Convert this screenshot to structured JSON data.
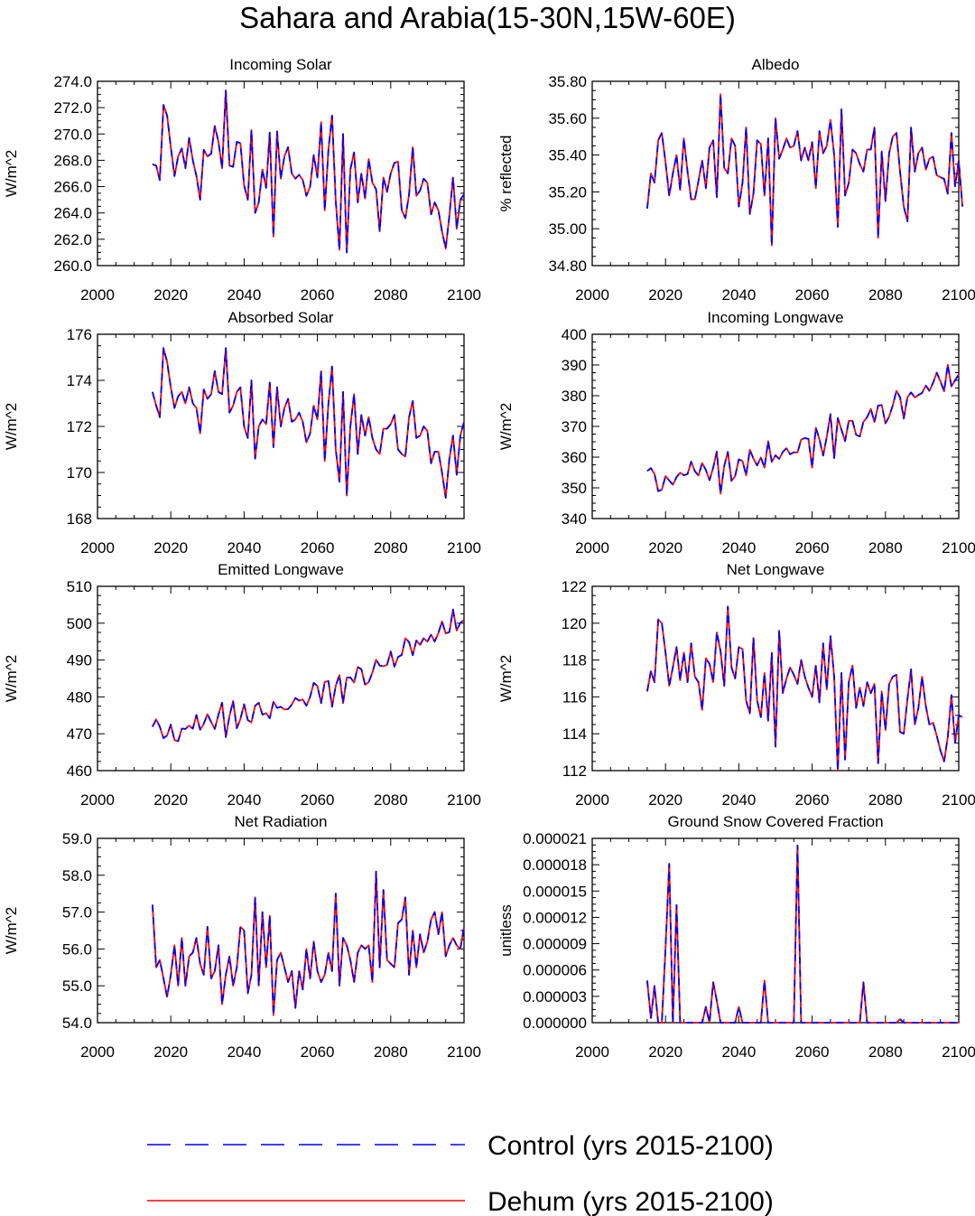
{
  "page_title": "Sahara and Arabia(15-30N,15W-60E)",
  "legend": {
    "items": [
      {
        "label": "Control (yrs 2015-2100)",
        "color": "#0000ff",
        "style": "dashed"
      },
      {
        "label": "Dehum (yrs 2015-2100)",
        "color": "#ff0000",
        "style": "solid"
      }
    ]
  },
  "chart_data": [
    {
      "type": "line",
      "title": "Incoming Solar",
      "ylabel": "W/m^2",
      "xlim": [
        2000,
        2100
      ],
      "ylim": [
        260,
        274
      ],
      "xticks": [
        2000,
        2020,
        2040,
        2060,
        2080,
        2100
      ],
      "yticks": [
        "260.0",
        "262.0",
        "264.0",
        "266.0",
        "268.0",
        "270.0",
        "272.0",
        "274.0"
      ],
      "x_start": 2015,
      "values": [
        267.7,
        267.6,
        266.5,
        272.2,
        271.4,
        269.0,
        266.8,
        268.3,
        268.9,
        267.4,
        269.7,
        268.0,
        266.8,
        265.0,
        268.8,
        268.3,
        268.5,
        270.6,
        269.4,
        267.4,
        273.3,
        267.6,
        267.5,
        269.4,
        269.3,
        266.1,
        265.0,
        270.3,
        264.0,
        264.8,
        267.3,
        265.9,
        270.1,
        262.2,
        270.2,
        266.6,
        268.3,
        269.0,
        267.0,
        266.6,
        266.9,
        266.5,
        265.3,
        266.0,
        268.4,
        266.7,
        270.9,
        264.2,
        268.8,
        271.4,
        264.9,
        261.2,
        270.0,
        261.0,
        267.3,
        268.6,
        264.8,
        267.0,
        265.1,
        268.1,
        266.3,
        265.8,
        262.6,
        266.7,
        265.6,
        267.0,
        267.8,
        267.9,
        264.2,
        263.6,
        265.4,
        269.0,
        265.3,
        265.7,
        266.6,
        266.3,
        263.9,
        264.8,
        264.2,
        262.6,
        261.3,
        263.8,
        266.7,
        262.8,
        265.0,
        265.4
      ]
    },
    {
      "type": "line",
      "title": "Albedo",
      "ylabel": "% reflected",
      "xlim": [
        2000,
        2100
      ],
      "ylim": [
        34.8,
        35.8
      ],
      "xticks": [
        2000,
        2020,
        2040,
        2060,
        2080,
        2100
      ],
      "yticks": [
        "34.80",
        "35.00",
        "35.20",
        "35.40",
        "35.60",
        "35.80"
      ],
      "x_start": 2015,
      "values": [
        35.11,
        35.3,
        35.25,
        35.48,
        35.52,
        35.36,
        35.18,
        35.3,
        35.4,
        35.21,
        35.49,
        35.31,
        35.16,
        35.16,
        35.26,
        35.37,
        35.22,
        35.44,
        35.48,
        35.17,
        35.73,
        35.33,
        35.3,
        35.49,
        35.45,
        35.12,
        35.25,
        35.55,
        35.08,
        35.19,
        35.48,
        35.46,
        35.18,
        35.49,
        34.91,
        35.6,
        35.38,
        35.43,
        35.49,
        35.44,
        35.45,
        35.53,
        35.37,
        35.44,
        35.37,
        35.47,
        35.22,
        35.53,
        35.41,
        35.45,
        35.59,
        35.4,
        35.01,
        35.65,
        35.18,
        35.25,
        35.43,
        35.41,
        35.35,
        35.31,
        35.43,
        35.43,
        35.55,
        34.95,
        35.42,
        35.15,
        35.41,
        35.5,
        35.52,
        35.31,
        35.12,
        35.04,
        35.55,
        35.31,
        35.41,
        35.44,
        35.32,
        35.38,
        35.39,
        35.29,
        35.28,
        35.27,
        35.19,
        35.52,
        35.23,
        35.37,
        35.12
      ]
    },
    {
      "type": "line",
      "title": "Absorbed Solar",
      "ylabel": "W/m^2",
      "xlim": [
        2000,
        2100
      ],
      "ylim": [
        168,
        176
      ],
      "xticks": [
        2000,
        2020,
        2040,
        2060,
        2080,
        2100
      ],
      "yticks": [
        "168",
        "170",
        "172",
        "174",
        "176"
      ],
      "x_start": 2015,
      "values": [
        173.5,
        172.9,
        172.4,
        175.4,
        174.8,
        173.7,
        172.8,
        173.3,
        173.5,
        173.0,
        173.7,
        173.0,
        172.8,
        171.7,
        173.6,
        173.2,
        173.4,
        174.4,
        173.5,
        173.4,
        175.4,
        172.6,
        172.9,
        173.5,
        173.7,
        172.0,
        171.5,
        174.0,
        170.6,
        172.0,
        172.3,
        172.1,
        173.9,
        171.1,
        173.7,
        172.0,
        172.8,
        173.2,
        172.2,
        172.3,
        172.6,
        172.2,
        171.3,
        171.7,
        172.9,
        172.3,
        174.4,
        170.5,
        173.0,
        174.6,
        171.0,
        169.6,
        173.5,
        169.0,
        172.0,
        173.4,
        170.8,
        172.5,
        171.6,
        172.4,
        171.5,
        171.0,
        170.8,
        171.9,
        171.9,
        172.1,
        172.5,
        171.0,
        170.8,
        170.7,
        172.4,
        173.1,
        171.5,
        171.6,
        172.0,
        171.8,
        170.4,
        170.9,
        170.9,
        170.0,
        168.9,
        170.6,
        171.6,
        169.9,
        171.6,
        172.2
      ]
    },
    {
      "type": "line",
      "title": "Incoming Longwave",
      "ylabel": "W/m^2",
      "xlim": [
        2000,
        2100
      ],
      "ylim": [
        340,
        400
      ],
      "xticks": [
        2000,
        2020,
        2040,
        2060,
        2080,
        2100
      ],
      "yticks": [
        "340",
        "350",
        "360",
        "370",
        "380",
        "390",
        "400"
      ],
      "x_start": 2015,
      "values": [
        355.5,
        356.4,
        354.5,
        348.9,
        349.4,
        353.8,
        352.4,
        351.0,
        353.5,
        354.9,
        354.1,
        354.5,
        358.5,
        355.4,
        354.0,
        358.1,
        355.8,
        352.5,
        356.6,
        361.8,
        348.1,
        357.1,
        361.7,
        352.3,
        353.8,
        359.3,
        358.7,
        354.1,
        362.4,
        359.5,
        357.3,
        359.9,
        356.6,
        365.2,
        358.5,
        360.6,
        359.4,
        361.7,
        362.9,
        360.9,
        361.6,
        361.5,
        365.7,
        366.2,
        365.9,
        356.6,
        369.6,
        365.8,
        360.5,
        366.6,
        374.0,
        359.7,
        372.7,
        368.9,
        365.2,
        371.8,
        371.8,
        367.3,
        366.7,
        371.5,
        373.0,
        375.7,
        371.4,
        376.8,
        376.9,
        371.0,
        373.2,
        376.8,
        381.6,
        379.5,
        372.6,
        379.5,
        381.1,
        379.4,
        380.2,
        380.9,
        383.3,
        381.6,
        384.2,
        387.5,
        384.7,
        381.4,
        390.1,
        383.0,
        385.0,
        386.9
      ]
    },
    {
      "type": "line",
      "title": "Emitted Longwave",
      "ylabel": "W/m^2",
      "xlim": [
        2000,
        2100
      ],
      "ylim": [
        460,
        510
      ],
      "xticks": [
        2000,
        2020,
        2040,
        2060,
        2080,
        2100
      ],
      "yticks": [
        "460",
        "470",
        "480",
        "490",
        "500",
        "510"
      ],
      "x_start": 2015,
      "values": [
        471.9,
        473.9,
        471.9,
        468.8,
        469.5,
        472.5,
        468.3,
        468.0,
        471.4,
        471.3,
        472.2,
        471.4,
        475.1,
        471.1,
        472.7,
        475.3,
        473.2,
        471.3,
        475.2,
        478.4,
        469.1,
        474.8,
        478.9,
        471.5,
        474.0,
        478.0,
        473.7,
        473.1,
        477.6,
        478.4,
        475.2,
        475.6,
        474.2,
        478.7,
        477.0,
        477.3,
        476.6,
        476.7,
        477.9,
        479.7,
        479.0,
        479.3,
        477.6,
        480.0,
        483.8,
        483.0,
        478.3,
        484.1,
        484.3,
        477.3,
        483.0,
        485.9,
        478.3,
        485.2,
        485.3,
        483.9,
        488.1,
        487.5,
        483.3,
        484.0,
        486.6,
        490.1,
        488.5,
        488.3,
        488.7,
        492.3,
        488.2,
        490.8,
        491.4,
        495.9,
        494.9,
        491.3,
        495.3,
        494.1,
        495.9,
        495.0,
        496.9,
        495.0,
        497.3,
        500.5,
        497.2,
        497.6,
        503.7,
        498.0,
        500.1,
        500.9
      ]
    },
    {
      "type": "line",
      "title": "Net Longwave",
      "ylabel": "W/m^2",
      "xlim": [
        2000,
        2100
      ],
      "ylim": [
        112,
        122
      ],
      "xticks": [
        2000,
        2020,
        2040,
        2060,
        2080,
        2100
      ],
      "yticks": [
        "112",
        "114",
        "116",
        "118",
        "120",
        "122"
      ],
      "x_start": 2015,
      "values": [
        116.3,
        117.4,
        116.8,
        120.2,
        120.0,
        118.4,
        116.6,
        117.6,
        118.7,
        116.9,
        118.4,
        116.8,
        118.9,
        117.1,
        116.8,
        115.3,
        118.1,
        117.8,
        116.8,
        119.5,
        118.5,
        116.6,
        120.9,
        117.6,
        117.0,
        118.7,
        118.6,
        115.8,
        115.1,
        119.2,
        115.8,
        114.9,
        117.3,
        114.7,
        118.4,
        113.3,
        119.6,
        116.2,
        117.0,
        117.6,
        117.2,
        116.7,
        118.0,
        117.1,
        116.5,
        116.0,
        117.7,
        115.7,
        118.9,
        116.4,
        119.3,
        117.1,
        112.0,
        117.3,
        112.6,
        116.8,
        117.7,
        115.4,
        116.5,
        115.5,
        116.8,
        116.2,
        116.7,
        112.4,
        116.3,
        114.2,
        116.7,
        117.1,
        117.2,
        114.1,
        114.0,
        115.9,
        117.5,
        114.5,
        115.4,
        117.1,
        115.5,
        114.5,
        114.6,
        113.9,
        113.1,
        112.5,
        113.8,
        116.1,
        113.5,
        115.0,
        114.9
      ]
    },
    {
      "type": "line",
      "title": "Net Radiation",
      "ylabel": "W/m^2",
      "xlim": [
        2000,
        2100
      ],
      "ylim": [
        54,
        59
      ],
      "xticks": [
        2000,
        2020,
        2040,
        2060,
        2080,
        2100
      ],
      "yticks": [
        "54.0",
        "55.0",
        "56.0",
        "57.0",
        "58.0",
        "59.0"
      ],
      "x_start": 2015,
      "values": [
        57.2,
        55.5,
        55.7,
        55.2,
        54.7,
        55.3,
        56.1,
        55.0,
        56.3,
        55.0,
        55.8,
        55.9,
        56.3,
        55.6,
        55.3,
        56.6,
        55.2,
        55.4,
        56.1,
        54.5,
        55.3,
        55.8,
        55.0,
        55.5,
        56.6,
        56.5,
        54.8,
        55.3,
        57.4,
        55.0,
        57.0,
        55.5,
        56.9,
        54.2,
        55.7,
        55.9,
        55.5,
        55.1,
        55.4,
        54.4,
        55.4,
        54.9,
        56.0,
        55.2,
        56.2,
        55.4,
        55.1,
        55.3,
        55.9,
        55.4,
        57.5,
        55.0,
        56.3,
        56.1,
        55.7,
        55.1,
        55.9,
        56.1,
        56.0,
        56.1,
        55.1,
        58.1,
        55.5,
        57.6,
        55.7,
        55.6,
        55.5,
        56.7,
        56.8,
        57.4,
        55.3,
        56.5,
        55.5,
        56.4,
        55.9,
        56.2,
        56.8,
        57.0,
        56.4,
        57.0,
        55.8,
        56.1,
        56.3,
        56.1,
        56.0,
        56.6
      ]
    },
    {
      "type": "line",
      "title": "Ground Snow Covered Fraction",
      "ylabel": "unitless",
      "xlim": [
        2000,
        2100
      ],
      "ylim": [
        0,
        2.1e-05
      ],
      "xticks": [
        2000,
        2020,
        2040,
        2060,
        2080,
        2100
      ],
      "yticks": [
        "0.000000",
        "0.000003",
        "0.000006",
        "0.000009",
        "0.000012",
        "0.000015",
        "0.000018",
        "0.000021"
      ],
      "x_start": 2015,
      "values": [
        4.8e-06,
        5e-07,
        4.2e-06,
        0,
        0,
        8.5e-06,
        1.81e-05,
        0,
        1.34e-05,
        0,
        0,
        0,
        0,
        0,
        0,
        0,
        1.8e-06,
        0,
        4.6e-06,
        2.5e-06,
        0,
        0,
        0,
        0,
        0,
        1.8e-06,
        0,
        0,
        0,
        0,
        0,
        0,
        4.8e-06,
        0,
        0,
        0,
        0,
        0,
        0,
        0,
        0,
        2.02e-05,
        0,
        0,
        0,
        0,
        0,
        0,
        0,
        0,
        0,
        0,
        0,
        0,
        0,
        0,
        0,
        0,
        0,
        4.6e-06,
        0,
        0,
        0,
        0,
        0,
        0,
        0,
        0,
        0,
        4e-07,
        0,
        0,
        0,
        0,
        0,
        0,
        0,
        0,
        0,
        0,
        0,
        0,
        0,
        0,
        0,
        0
      ]
    }
  ]
}
